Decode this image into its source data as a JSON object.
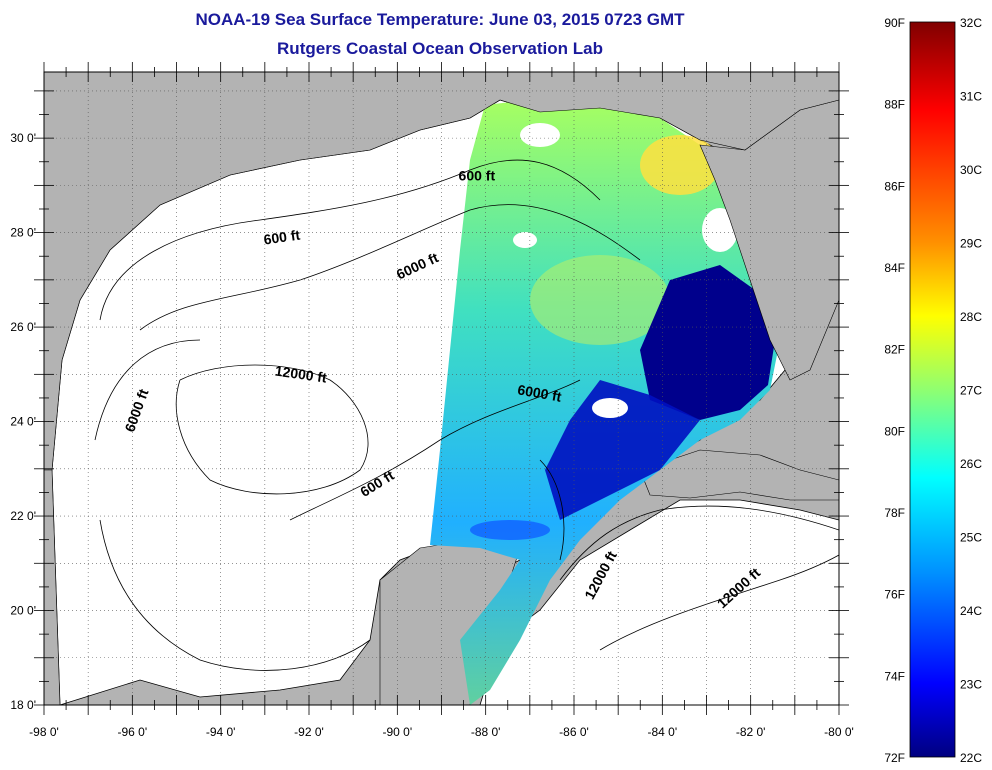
{
  "title": "NOAA-19 Sea Surface Temperature:  June 03, 2015 0723 GMT",
  "subtitle": "Rutgers Coastal Ocean Observation Lab",
  "axes": {
    "lon_labels": [
      "-98 0'",
      "-96 0'",
      "-94 0'",
      "-92 0'",
      "-90 0'",
      "-88 0'",
      "-86 0'",
      "-84 0'",
      "-82 0'",
      "-80 0'"
    ],
    "lon_values": [
      -98,
      -96,
      -94,
      -92,
      -90,
      -88,
      -86,
      -84,
      -82,
      -80
    ],
    "lat_labels": [
      "30 0'",
      "28 0'",
      "26 0'",
      "24 0'",
      "22 0'",
      "20 0'",
      "18 0'"
    ],
    "lat_values": [
      30,
      28,
      26,
      24,
      22,
      20,
      18
    ],
    "lon_range": [
      -98,
      -80
    ],
    "lat_range": [
      18,
      31.4
    ],
    "grid": true
  },
  "contour_labels": [
    {
      "text": "600 ft",
      "lon": -92.6,
      "lat": 27.8,
      "angle": -8
    },
    {
      "text": "6000 ft",
      "lon": -89.5,
      "lat": 27.2,
      "angle": -25
    },
    {
      "text": "600 ft",
      "lon": -88.2,
      "lat": 29.1,
      "angle": 0
    },
    {
      "text": "12000 ft",
      "lon": -92.2,
      "lat": 24.9,
      "angle": 8
    },
    {
      "text": "6000 ft",
      "lon": -95.8,
      "lat": 24.2,
      "angle": -70
    },
    {
      "text": "6000 ft",
      "lon": -86.8,
      "lat": 24.5,
      "angle": 10
    },
    {
      "text": "600 ft",
      "lon": -90.4,
      "lat": 22.6,
      "angle": -32
    },
    {
      "text": "12000 ft",
      "lon": -85.3,
      "lat": 20.7,
      "angle": -62
    },
    {
      "text": "12000 ft",
      "lon": -82.2,
      "lat": 20.4,
      "angle": -42
    }
  ],
  "colorbar": {
    "f_labels": [
      "90F",
      "88F",
      "86F",
      "84F",
      "82F",
      "80F",
      "78F",
      "76F",
      "74F",
      "72F"
    ],
    "c_labels": [
      "32C",
      "31C",
      "30C",
      "29C",
      "28C",
      "27C",
      "26C",
      "25C",
      "24C",
      "23C",
      "22C"
    ],
    "range_c": [
      22,
      32
    ]
  },
  "colors": {
    "land": "#b3b3b3",
    "ocean": "#ffffff",
    "title": "#1a1a9c",
    "colormap": [
      "#800000",
      "#ff0000",
      "#ff8000",
      "#ffff00",
      "#80ff80",
      "#00ffff",
      "#0080ff",
      "#0000ff",
      "#000080"
    ]
  }
}
